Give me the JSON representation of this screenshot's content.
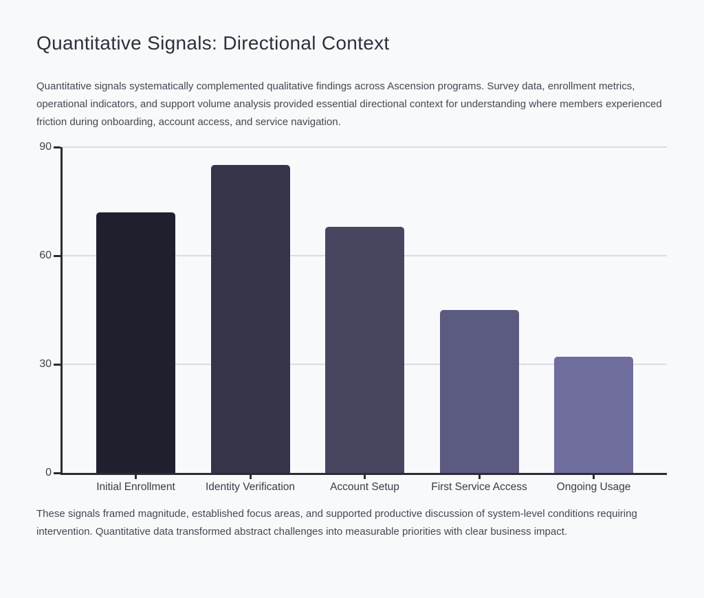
{
  "page": {
    "title": "Quantitative Signals: Directional Context",
    "intro": "Quantitative signals systematically complemented qualitative findings across Ascension programs. Survey data, enrollment metrics, operational indicators, and support volume analysis provided essential directional context for understanding where members experienced friction during onboarding, account access, and service navigation.",
    "closing": "These signals framed magnitude, established focus areas, and supported productive discussion of system-level conditions requiring intervention. Quantitative data transformed abstract challenges into measurable priorities with clear business impact."
  },
  "chart_data": {
    "type": "bar",
    "title": "",
    "xlabel": "",
    "ylabel": "",
    "categories": [
      "Initial Enrollment",
      "Identity Verification",
      "Account Setup",
      "First Service Access",
      "Ongoing Usage"
    ],
    "values": [
      72,
      85,
      68,
      45,
      32
    ],
    "bar_colors": [
      "#201f2e",
      "#353448",
      "#474661",
      "#5b5a80",
      "#6e6d9b"
    ],
    "yticks": [
      0,
      30,
      60,
      90
    ],
    "ylim": [
      0,
      90
    ],
    "grid": true,
    "legend": false,
    "axis_color": "#2b2b33",
    "gridline_color": "#dcdde2",
    "background_color": "#f8f9fb",
    "text_color": "#414753"
  }
}
